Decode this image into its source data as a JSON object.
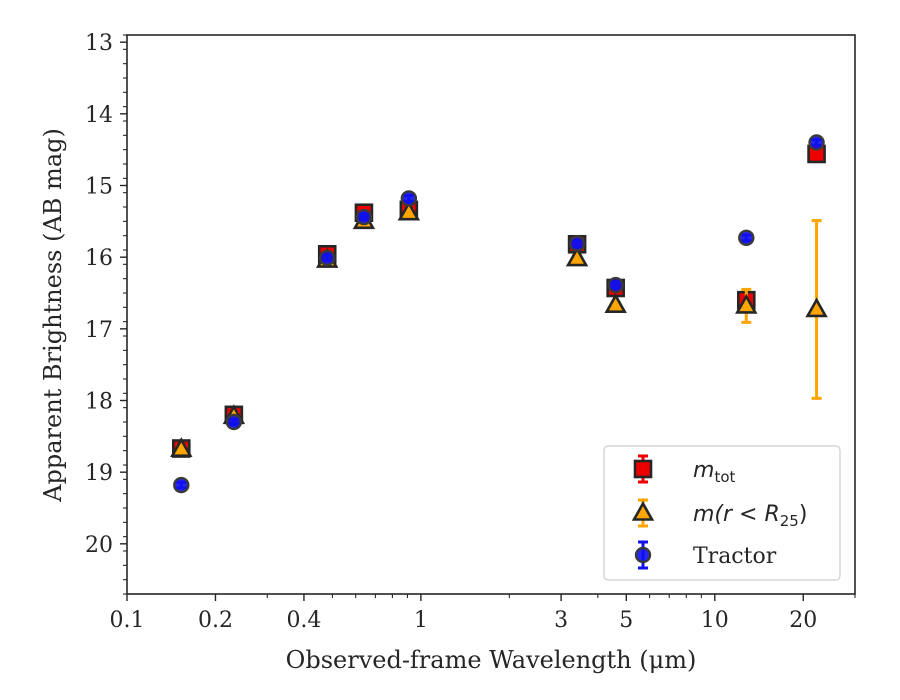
{
  "chart_data": {
    "type": "scatter",
    "xlabel": "Observed-frame Wavelength (μm)",
    "ylabel": "Apparent Brightness (AB mag)",
    "xscale": "log",
    "xlim": [
      0.1,
      30
    ],
    "ylim": [
      20.7,
      12.9
    ],
    "y_inverted": true,
    "x_ticks": [
      {
        "value": 0.1,
        "label": "0.1"
      },
      {
        "value": 0.2,
        "label": "0.2"
      },
      {
        "value": 0.4,
        "label": "0.4"
      },
      {
        "value": 1,
        "label": "1"
      },
      {
        "value": 3,
        "label": "3"
      },
      {
        "value": 5,
        "label": "5"
      },
      {
        "value": 10,
        "label": "10"
      },
      {
        "value": 20,
        "label": "20"
      }
    ],
    "y_ticks": [
      {
        "value": 13,
        "label": "13"
      },
      {
        "value": 14,
        "label": "14"
      },
      {
        "value": 15,
        "label": "15"
      },
      {
        "value": 16,
        "label": "16"
      },
      {
        "value": 17,
        "label": "17"
      },
      {
        "value": 18,
        "label": "18"
      },
      {
        "value": 19,
        "label": "19"
      },
      {
        "value": 20,
        "label": "20"
      }
    ],
    "grid": false,
    "legend_position": "bottom-right",
    "series": [
      {
        "name": "m_tot",
        "legend_main": "m",
        "legend_sub": "tot",
        "marker": "square",
        "fill": "#ee0000",
        "errcolor": "#ee0000",
        "points": [
          {
            "x": 0.153,
            "y": 18.67,
            "err": 0.05
          },
          {
            "x": 0.231,
            "y": 18.2,
            "err": 0.05
          },
          {
            "x": 0.48,
            "y": 15.96,
            "err": 0.05
          },
          {
            "x": 0.64,
            "y": 15.38,
            "err": 0.05
          },
          {
            "x": 0.91,
            "y": 15.34,
            "err": 0.05
          },
          {
            "x": 3.4,
            "y": 15.82,
            "err": 0.05
          },
          {
            "x": 4.6,
            "y": 16.43,
            "err": 0.05
          },
          {
            "x": 12.8,
            "y": 16.6,
            "err": 0.06
          },
          {
            "x": 22.2,
            "y": 14.56,
            "err": 0.04
          }
        ]
      },
      {
        "name": "m(r<R25)",
        "legend_text": "m(r < R",
        "legend_sub": "25",
        "legend_close": ")",
        "marker": "triangle",
        "fill": "#ffa500",
        "errcolor": "#ffa500",
        "points": [
          {
            "x": 0.153,
            "y": 18.68,
            "err": 0.04
          },
          {
            "x": 0.231,
            "y": 18.22,
            "err": 0.04
          },
          {
            "x": 0.48,
            "y": 16.04,
            "err": 0.04
          },
          {
            "x": 0.64,
            "y": 15.5,
            "err": 0.04
          },
          {
            "x": 0.91,
            "y": 15.38,
            "err": 0.04
          },
          {
            "x": 3.4,
            "y": 16.02,
            "err": 0.04
          },
          {
            "x": 4.6,
            "y": 16.67,
            "err": 0.04
          },
          {
            "x": 12.8,
            "y": 16.68,
            "err": 0.23
          },
          {
            "x": 22.2,
            "y": 16.73,
            "err": 1.24
          }
        ]
      },
      {
        "name": "Tractor",
        "marker": "circle",
        "fill": "#1010ee",
        "errcolor": "#1010ee",
        "points": [
          {
            "x": 0.153,
            "y": 19.18,
            "err": 0.04
          },
          {
            "x": 0.231,
            "y": 18.3,
            "err": 0.04
          },
          {
            "x": 0.48,
            "y": 16.01,
            "err": 0.04
          },
          {
            "x": 0.64,
            "y": 15.44,
            "err": 0.04
          },
          {
            "x": 0.91,
            "y": 15.18,
            "err": 0.04
          },
          {
            "x": 3.4,
            "y": 15.81,
            "err": 0.04
          },
          {
            "x": 4.6,
            "y": 16.39,
            "err": 0.04
          },
          {
            "x": 12.8,
            "y": 15.73,
            "err": 0.04
          },
          {
            "x": 22.2,
            "y": 14.4,
            "err": 0.04
          }
        ]
      }
    ]
  }
}
